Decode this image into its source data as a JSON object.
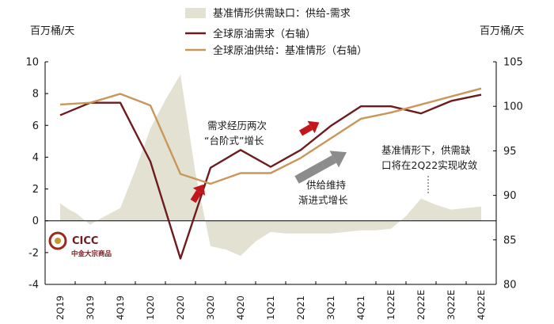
{
  "chart_data": {
    "type": "area+line",
    "left_axis_label": "百万桶/天",
    "right_axis_label": "百万桶/天",
    "left_ylim": [
      -4,
      10
    ],
    "right_ylim": [
      80,
      105
    ],
    "left_ticks": [
      "10",
      "8",
      "6",
      "4",
      "2",
      "0",
      "-2",
      "-4"
    ],
    "right_ticks": [
      "105",
      "100",
      "95",
      "90",
      "85",
      "80"
    ],
    "categories": [
      "2Q19",
      "3Q19",
      "4Q19",
      "1Q20",
      "2Q20",
      "3Q20",
      "4Q20",
      "1Q21",
      "2Q21",
      "3Q21",
      "4Q21",
      "1Q22E",
      "2Q22E",
      "3Q22E",
      "4Q22E"
    ],
    "x_tick_labels": [
      "2Q19",
      "3Q19",
      "4Q19",
      "1Q20",
      "2Q20",
      "3Q20",
      "4Q20",
      "1Q21",
      "2Q21",
      "3Q21",
      "4Q21",
      "1Q22E",
      "2Q22E",
      "3Q22E",
      "4Q22E"
    ],
    "series": [
      {
        "name": "基准情形供需缺口：供给-需求",
        "axis": "left",
        "kind": "area",
        "color": "#e3e1d1",
        "points": [
          [
            0,
            1.1
          ],
          [
            0.3,
            0.7
          ],
          [
            0.55,
            0.45
          ],
          [
            1,
            -0.25
          ],
          [
            1.3,
            0.1
          ],
          [
            2,
            0.8
          ],
          [
            2.5,
            3.2
          ],
          [
            3,
            5.8
          ],
          [
            3.5,
            7.6
          ],
          [
            4,
            9.2
          ],
          [
            4.5,
            3.0
          ],
          [
            5,
            -1.6
          ],
          [
            5.5,
            -1.8
          ],
          [
            6,
            -2.2
          ],
          [
            6.5,
            -1.3
          ],
          [
            7,
            -0.7
          ],
          [
            7.5,
            -0.8
          ],
          [
            8,
            -0.8
          ],
          [
            8.5,
            -0.8
          ],
          [
            9,
            -0.8
          ],
          [
            9.5,
            -0.7
          ],
          [
            10,
            -0.6
          ],
          [
            10.5,
            -0.6
          ],
          [
            11,
            -0.5
          ],
          [
            11.5,
            0.3
          ],
          [
            12,
            1.4
          ],
          [
            12.5,
            1.0
          ],
          [
            13,
            0.7
          ],
          [
            13.5,
            0.8
          ],
          [
            14,
            0.9
          ]
        ]
      },
      {
        "name": "全球原油需求（右轴）",
        "axis": "right",
        "kind": "line",
        "color": "#6e1b1f",
        "values": [
          99.0,
          100.4,
          100.4,
          93.8,
          82.9,
          93.1,
          95.1,
          93.2,
          95.1,
          97.8,
          100.0,
          100.0,
          99.2,
          100.6,
          101.3
        ]
      },
      {
        "name": "全球原油供给：基准情形（右轴）",
        "axis": "right",
        "kind": "line",
        "color": "#c9975a",
        "values": [
          100.2,
          100.4,
          101.4,
          100.1,
          92.4,
          91.3,
          92.5,
          92.5,
          94.2,
          96.4,
          98.6,
          99.3,
          100.2,
          101.1,
          102.0
        ]
      }
    ],
    "annotations": [
      "需求经历两次",
      "“台阶式”增长",
      "供给维持",
      "渐进式增长",
      "基准情形下，供需缺",
      "口将在2Q22实现收敛"
    ],
    "legend_position": "top-center",
    "grid": false
  },
  "logo": {
    "text": "CICC",
    "subtext": "中金大宗商品"
  }
}
